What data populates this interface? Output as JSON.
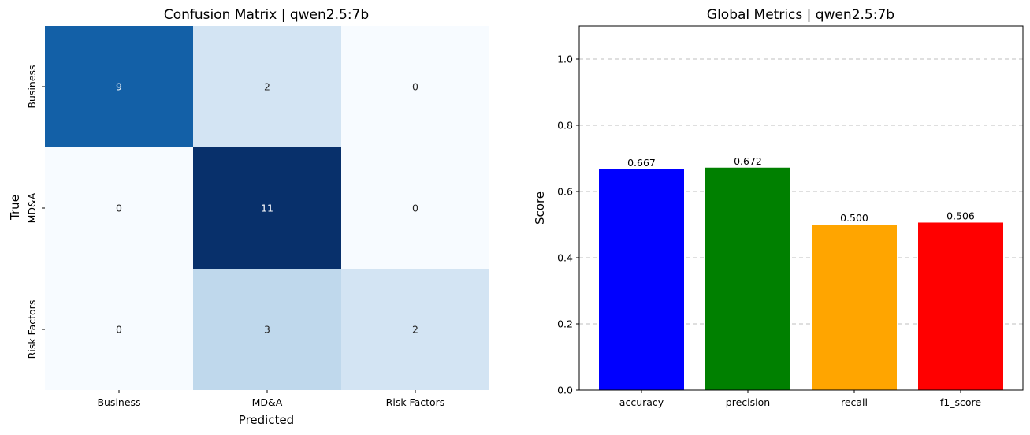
{
  "chart_data": [
    {
      "type": "heatmap",
      "title": "Confusion Matrix | qwen2.5:7b",
      "xlabel": "Predicted",
      "ylabel": "True",
      "x_categories": [
        "Business",
        "MD&A",
        "Risk Factors"
      ],
      "y_categories": [
        "Business",
        "MD&A",
        "Risk Factors"
      ],
      "values": [
        [
          9,
          2,
          0
        ],
        [
          0,
          11,
          0
        ],
        [
          0,
          3,
          2
        ]
      ],
      "colormap": "Blues",
      "vmin": 0,
      "vmax": 11,
      "colorbar": false
    },
    {
      "type": "bar",
      "title": "Global Metrics | qwen2.5:7b",
      "xlabel": "",
      "ylabel": "Score",
      "categories": [
        "accuracy",
        "precision",
        "recall",
        "f1_score"
      ],
      "values": [
        0.667,
        0.672,
        0.5,
        0.506
      ],
      "value_labels": [
        "0.667",
        "0.672",
        "0.500",
        "0.506"
      ],
      "colors": [
        "#0000ff",
        "#008000",
        "#ffa500",
        "#ff0000"
      ],
      "ylim": [
        0,
        1.1
      ],
      "yticks": [
        0.0,
        0.2,
        0.4,
        0.6,
        0.8,
        1.0
      ],
      "ytick_labels": [
        "0.0",
        "0.2",
        "0.4",
        "0.6",
        "0.8",
        "1.0"
      ],
      "grid": "y dashed"
    }
  ]
}
